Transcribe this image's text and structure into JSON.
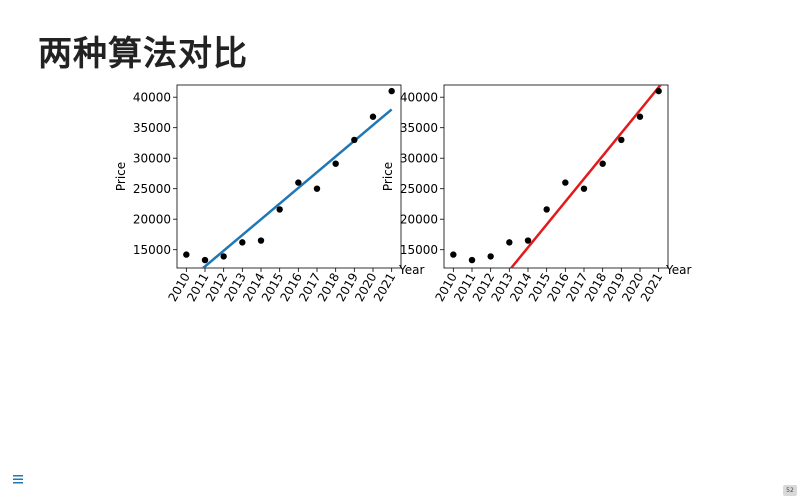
{
  "slide": {
    "title": "两种算法对比",
    "page_number": "52"
  },
  "icons": {
    "menu": "hamburger-menu-icon",
    "menu_color": "#1f77b4"
  },
  "chart_data": [
    {
      "type": "scatter",
      "title": "",
      "xlabel": "Year",
      "ylabel": "Price",
      "categories": [
        "2010",
        "2011",
        "2012",
        "2013",
        "2014",
        "2015",
        "2016",
        "2017",
        "2018",
        "2019",
        "2020",
        "2021"
      ],
      "series": [
        {
          "values": [
            14200,
            13300,
            13900,
            16200,
            16500,
            21600,
            26000,
            25000,
            29100,
            33000,
            36800,
            41000
          ],
          "color": "#000000"
        }
      ],
      "fit_line": {
        "color": "#1f77b4",
        "from": [
          2010.9,
          12000
        ],
        "to": [
          2021,
          38000
        ]
      },
      "yticks": [
        15000,
        20000,
        25000,
        30000,
        35000,
        40000
      ],
      "ylim": [
        12000,
        42000
      ],
      "xlim": [
        2009.5,
        2021.5
      ],
      "grid": false
    },
    {
      "type": "scatter",
      "title": "",
      "xlabel": "Year",
      "ylabel": "Price",
      "categories": [
        "2010",
        "2011",
        "2012",
        "2013",
        "2014",
        "2015",
        "2016",
        "2017",
        "2018",
        "2019",
        "2020",
        "2021"
      ],
      "series": [
        {
          "values": [
            14200,
            13300,
            13900,
            16200,
            16500,
            21600,
            26000,
            25000,
            29100,
            33000,
            36800,
            41000
          ],
          "color": "#000000"
        }
      ],
      "fit_line": {
        "color": "#e31a1c",
        "from": [
          2013.1,
          12000
        ],
        "to": [
          2021.1,
          42000
        ]
      },
      "yticks": [
        15000,
        20000,
        25000,
        30000,
        35000,
        40000
      ],
      "ylim": [
        12000,
        42000
      ],
      "xlim": [
        2009.5,
        2021.5
      ],
      "grid": false
    }
  ]
}
